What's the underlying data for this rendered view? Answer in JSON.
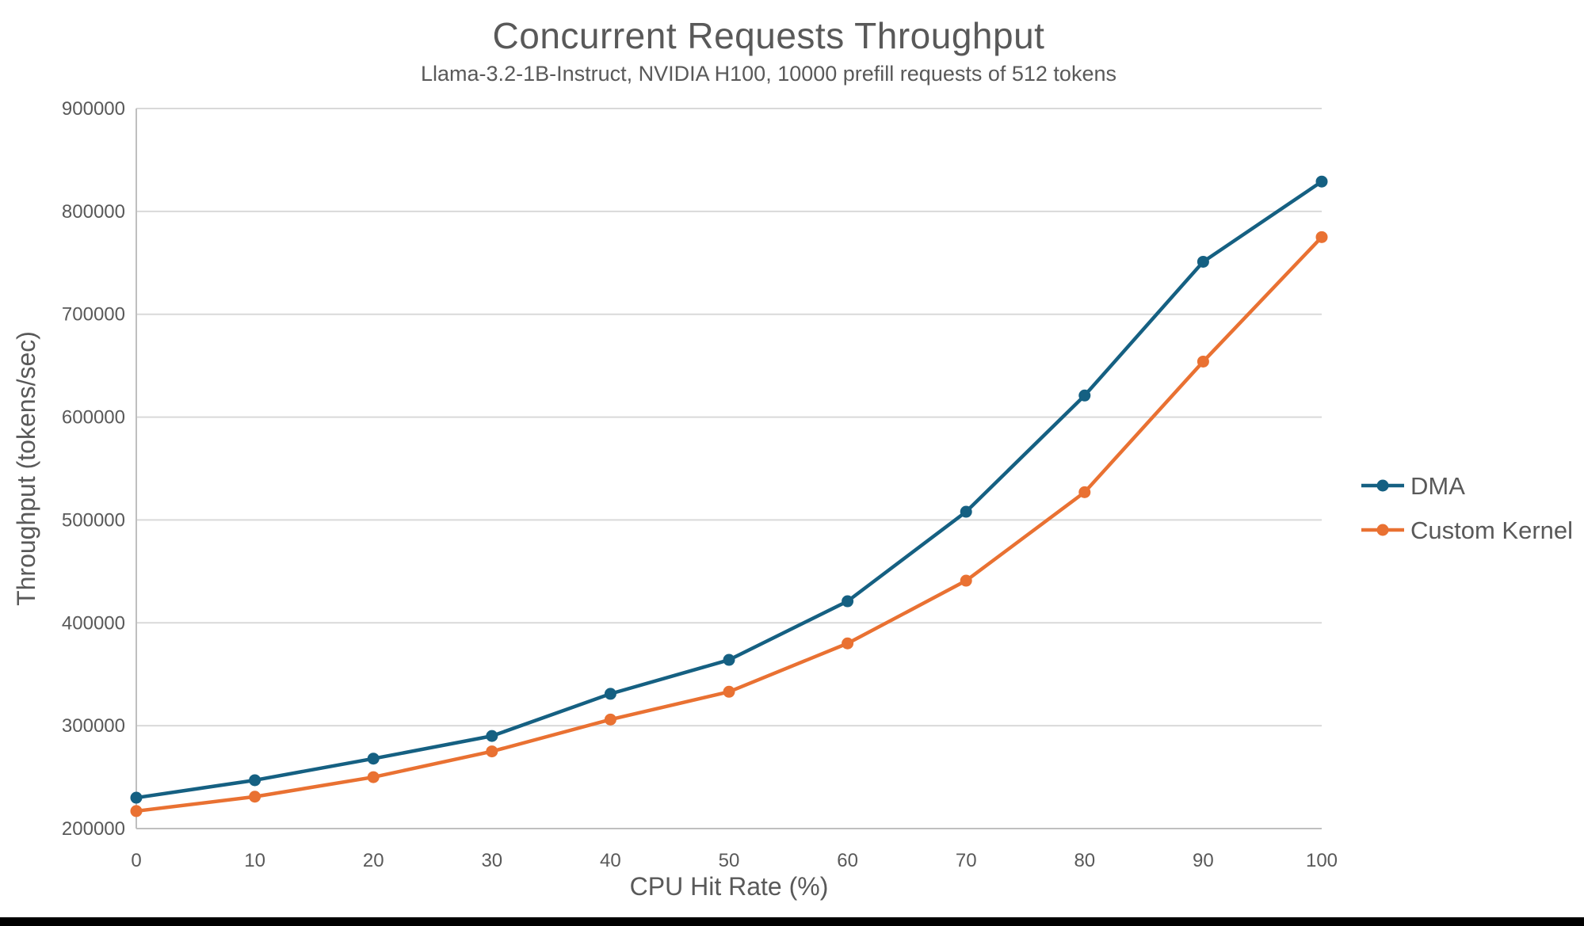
{
  "chart_data": {
    "type": "line",
    "title": "Concurrent Requests Throughput",
    "subtitle": "Llama-3.2-1B-Instruct, NVIDIA H100, 10000 prefill requests of 512 tokens",
    "xlabel": "CPU Hit Rate (%)",
    "ylabel": "Throughput (tokens/sec)",
    "x": [
      0,
      10,
      20,
      30,
      40,
      50,
      60,
      70,
      80,
      90,
      100
    ],
    "series": [
      {
        "name": "DMA",
        "color": "#156082",
        "values": [
          230000,
          247000,
          268000,
          290000,
          331000,
          364000,
          421000,
          508000,
          621000,
          751000,
          829000
        ]
      },
      {
        "name": "Custom Kernel",
        "color": "#E97132",
        "values": [
          217000,
          231000,
          250000,
          275000,
          306000,
          333000,
          380000,
          441000,
          527000,
          654000,
          775000
        ]
      }
    ],
    "ylim": [
      200000,
      900000
    ],
    "ytick_step": 100000,
    "grid": "horizontal",
    "legend_position": "right",
    "marker": "circle"
  },
  "colors": {
    "text": "#595959",
    "gridline": "#D9D9D9",
    "axis_line": "#BFBFBF",
    "background": "#FFFFFF",
    "bottom_bar": "#000000"
  }
}
